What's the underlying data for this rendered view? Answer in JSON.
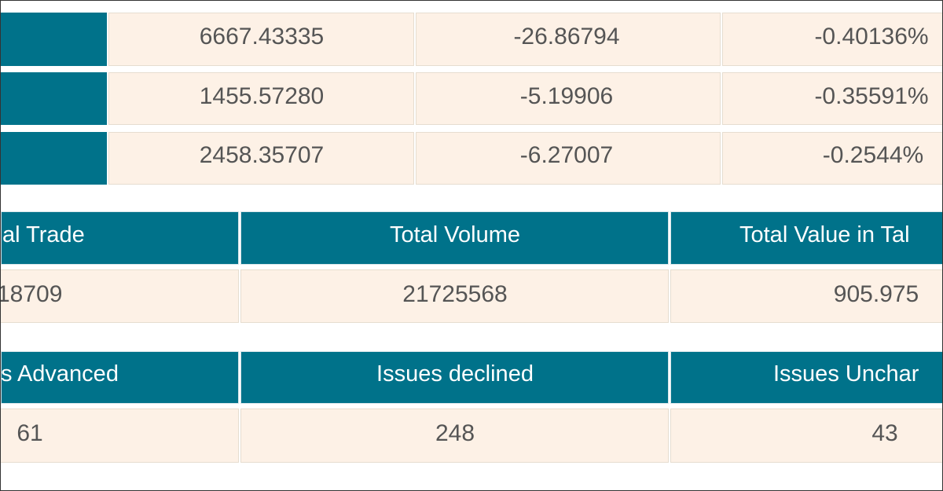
{
  "market_table": {
    "rows": [
      [
        "6667.43335",
        "-26.86794",
        "-0.40136%"
      ],
      [
        "1455.57280",
        "-5.19906",
        "-0.35591%"
      ],
      [
        "2458.35707",
        "-6.27007",
        "-0.2544%"
      ]
    ]
  },
  "trade_table": {
    "headers": [
      "al Trade",
      "Total Volume",
      "Total Value in Tal"
    ],
    "values": [
      "18709",
      "21725568",
      "905.975"
    ]
  },
  "issues_table": {
    "headers": [
      "s Advanced",
      "Issues declined",
      "Issues Unchar"
    ],
    "values": [
      "61",
      "248",
      "43"
    ]
  }
}
